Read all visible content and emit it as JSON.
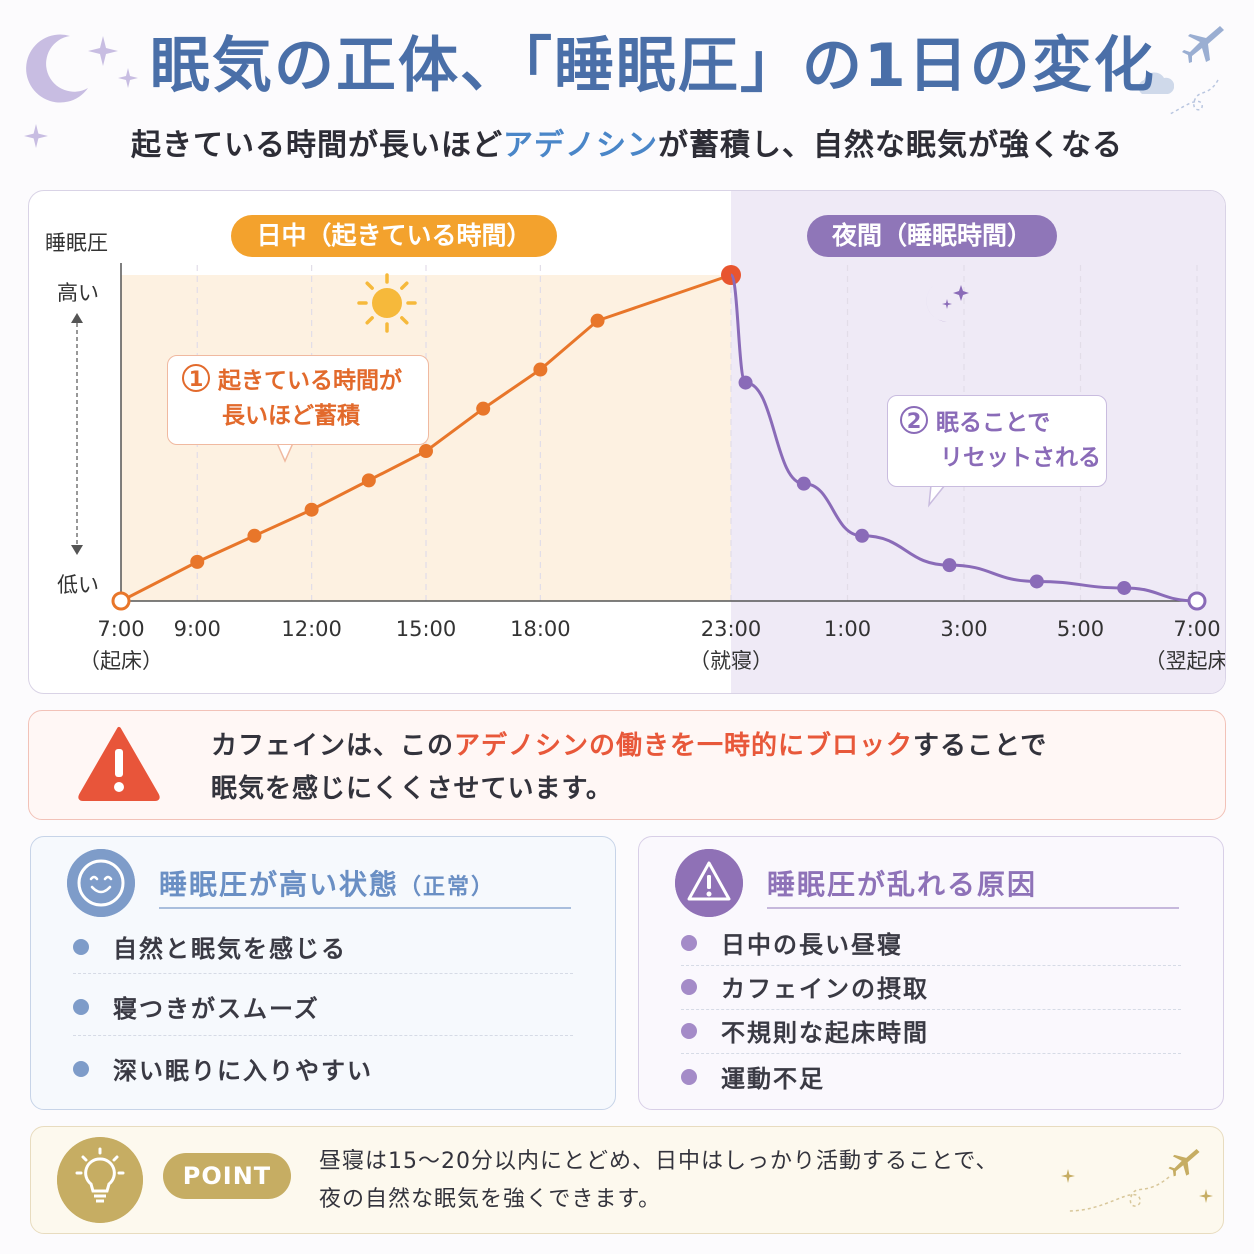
{
  "header": {
    "title": "眠気の正体、「睡眠圧」の1日の変化",
    "subtitle_pre": "起きている時間が長いほど",
    "subtitle_highlight": "アデノシン",
    "subtitle_post": "が蓄積し、自然な眠気が強くなる"
  },
  "chart_data": {
    "type": "line",
    "ylabel": "睡眠圧",
    "y_high_label": "高い",
    "y_low_label": "低い",
    "ylim": [
      0,
      10
    ],
    "x_tick_labels": [
      "7:00",
      "9:00",
      "12:00",
      "15:00",
      "18:00",
      "23:00",
      "1:00",
      "3:00",
      "5:00",
      "7:00"
    ],
    "x_tick_sublabels": [
      "（起床）",
      "",
      "",
      "",
      "",
      "（就寝）",
      "",
      "",
      "",
      "（翌起床）"
    ],
    "regions": [
      {
        "name": "日中（起きている時間）",
        "color": "#fdf1e1"
      },
      {
        "name": "夜間（睡眠時間）",
        "color": "#efeaf6"
      }
    ],
    "series": [
      {
        "color": "#e8762a",
        "x": [
          "7:00",
          "9:00",
          "10:30",
          "12:00",
          "13:30",
          "15:00",
          "16:30",
          "18:00",
          "19:30",
          "23:00"
        ],
        "y": [
          0.0,
          1.2,
          2.0,
          2.8,
          3.7,
          4.6,
          5.9,
          7.1,
          8.6,
          10.0
        ]
      },
      {
        "color": "#8a6bb8",
        "x": [
          "23:00",
          "23:15",
          "0:15",
          "1:15",
          "2:45",
          "4:15",
          "5:45",
          "7:00"
        ],
        "y": [
          10.0,
          6.7,
          3.6,
          2.0,
          1.1,
          0.6,
          0.4,
          0.0
        ]
      }
    ],
    "annotations": [
      {
        "num": "1",
        "line1": "起きている時間が",
        "line2": "長いほど蓄積"
      },
      {
        "num": "2",
        "line1": "眠ることで",
        "line2": "リセットされる"
      }
    ]
  },
  "warning": {
    "pre": "カフェインは、この",
    "highlight": "アデノシンの働きを一時的にブロック",
    "post": "することで",
    "line2": "眠気を感じにくくさせています。"
  },
  "left_panel": {
    "title": "睡眠圧が高い状態",
    "title_suffix": "（正常）",
    "items": [
      "自然と眠気を感じる",
      "寝つきがスムーズ",
      "深い眠りに入りやすい"
    ]
  },
  "right_panel": {
    "title": "睡眠圧が乱れる原因",
    "items": [
      "日中の長い昼寝",
      "カフェインの摂取",
      "不規則な起床時間",
      "運動不足"
    ]
  },
  "point": {
    "badge": "POINT",
    "line1": "昼寝は15〜20分以内にとどめ、日中はしっかり活動することで、",
    "line2": "夜の自然な眠気を強くできます。"
  },
  "icons": [
    "moon-icon",
    "sparkle-icon",
    "airplane-icon",
    "cloud-icon",
    "sun-icon",
    "warning-icon",
    "smile-icon",
    "lightbulb-icon"
  ]
}
